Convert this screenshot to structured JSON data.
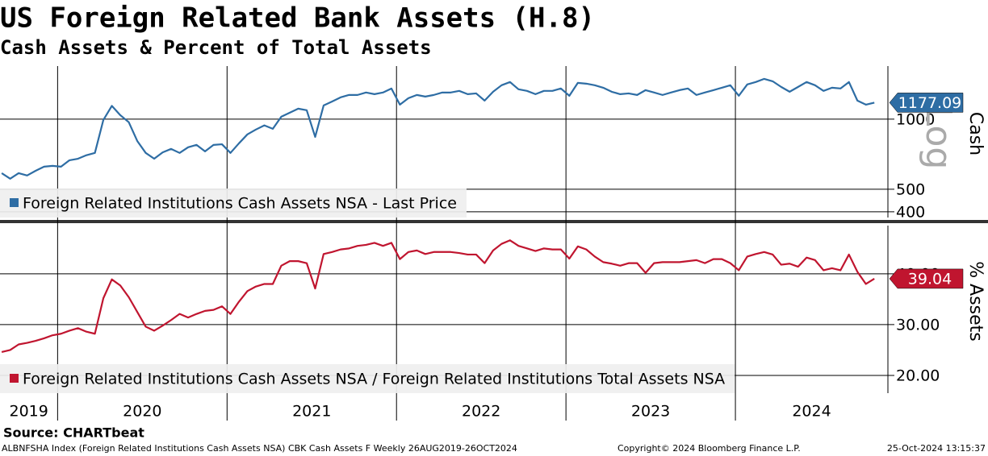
{
  "source": "Source: CHARTbeat",
  "footer": {
    "description": "ALBNFSHA Index (Foreign Related Institutions Cash Assets NSA) CBK Cash Assets F  Weekly 26AUG2019-26OCT2024",
    "copyright": "Copyright© 2024 Bloomberg Finance L.P.",
    "timestamp": "25-Oct-2024 13:15:37"
  },
  "chart_data": [
    {
      "type": "line",
      "title": "US Foreign Related Bank Assets (H.8)",
      "subtitle": "Cash Assets & Percent of Total Assets",
      "log_scale": true,
      "log_label": "Log",
      "y_label": "Cash",
      "grid": true,
      "legend": "lower left",
      "xlim": [
        2019.66,
        2024.9
      ],
      "xticks": [
        2020,
        2021,
        2022,
        2023,
        2024
      ],
      "x": [
        2019.67,
        2019.72,
        2019.77,
        2019.82,
        2019.87,
        2019.92,
        2019.97,
        2020.02,
        2020.07,
        2020.12,
        2020.17,
        2020.22,
        2020.27,
        2020.32,
        2020.37,
        2020.42,
        2020.47,
        2020.52,
        2020.57,
        2020.62,
        2020.67,
        2020.72,
        2020.77,
        2020.82,
        2020.87,
        2020.92,
        2020.97,
        2021.02,
        2021.07,
        2021.12,
        2021.17,
        2021.22,
        2021.27,
        2021.32,
        2021.37,
        2021.42,
        2021.47,
        2021.52,
        2021.57,
        2021.62,
        2021.67,
        2021.72,
        2021.77,
        2021.82,
        2021.87,
        2021.92,
        2021.97,
        2022.02,
        2022.07,
        2022.12,
        2022.17,
        2022.22,
        2022.27,
        2022.32,
        2022.37,
        2022.42,
        2022.47,
        2022.52,
        2022.57,
        2022.62,
        2022.67,
        2022.72,
        2022.77,
        2022.82,
        2022.87,
        2022.92,
        2022.97,
        2023.02,
        2023.07,
        2023.12,
        2023.17,
        2023.22,
        2023.27,
        2023.32,
        2023.37,
        2023.42,
        2023.47,
        2023.52,
        2023.57,
        2023.62,
        2023.67,
        2023.72,
        2023.77,
        2023.82,
        2023.87,
        2023.92,
        2023.97,
        2024.02,
        2024.07,
        2024.12,
        2024.17,
        2024.22,
        2024.27,
        2024.32,
        2024.37,
        2024.42,
        2024.47,
        2024.52,
        2024.57,
        2024.62,
        2024.67,
        2024.72,
        2024.77,
        2024.82
      ],
      "ylim": [
        378,
        1690
      ],
      "yticks": [
        400,
        500,
        1000
      ],
      "series": [
        {
          "name": "Foreign Related Institutions Cash Assets NSA - Last Price",
          "color": "#2e6da4",
          "values": [
            586,
            555,
            586,
            573,
            600,
            625,
            630,
            625,
            666,
            676,
            700,
            716,
            992,
            1140,
            1040,
            970,
            806,
            716,
            676,
            720,
            745,
            716,
            757,
            775,
            727,
            775,
            780,
            716,
            787,
            860,
            902,
            940,
            909,
            1024,
            1066,
            1109,
            1092,
            839,
            1145,
            1190,
            1240,
            1270,
            1270,
            1301,
            1280,
            1301,
            1354,
            1154,
            1230,
            1270,
            1250,
            1270,
            1301,
            1301,
            1322,
            1280,
            1290,
            1201,
            1311,
            1398,
            1443,
            1343,
            1322,
            1280,
            1322,
            1322,
            1354,
            1260,
            1431,
            1420,
            1398,
            1364,
            1311,
            1280,
            1290,
            1270,
            1332,
            1301,
            1270,
            1301,
            1332,
            1354,
            1270,
            1301,
            1332,
            1364,
            1398,
            1260,
            1409,
            1443,
            1489,
            1454,
            1375,
            1311,
            1375,
            1443,
            1398,
            1322,
            1364,
            1354,
            1443,
            1201,
            1154,
            1177.09
          ]
        }
      ]
    },
    {
      "type": "line",
      "y_label": "% Assets",
      "grid": true,
      "legend": "lower left",
      "x_period_labels": [
        "2019",
        "2020",
        "2021",
        "2022",
        "2023",
        "2024"
      ],
      "ylim": [
        16.5,
        49.5
      ],
      "yticks": [
        {
          "value": 20,
          "label": "20.00"
        },
        {
          "value": 30,
          "label": "30.00"
        },
        {
          "value": 40,
          "label": "40.00"
        }
      ],
      "series": [
        {
          "name": "Foreign Related Institutions Cash Assets NSA / Foreign Related Institutions Total Assets NSA",
          "color": "#c0152f",
          "values": [
            24.6,
            25,
            26.1,
            26.4,
            26.8,
            27.3,
            27.9,
            28.2,
            28.8,
            29.3,
            28.6,
            28.2,
            35.2,
            38.9,
            37.7,
            35.4,
            32.5,
            29.6,
            28.8,
            29.8,
            30.9,
            32.1,
            31.4,
            32.1,
            32.7,
            32.9,
            33.6,
            32.1,
            34.5,
            36.6,
            37.5,
            38,
            38,
            41.6,
            42.5,
            42.5,
            42.1,
            37.1,
            43.9,
            44.3,
            44.8,
            45,
            45.5,
            45.7,
            46.1,
            45.5,
            46.1,
            42.9,
            44.3,
            44.6,
            43.9,
            44.3,
            44.3,
            44.3,
            44.1,
            43.8,
            43.8,
            42.1,
            44.6,
            45.9,
            46.6,
            45.5,
            45,
            44.5,
            45,
            44.8,
            44.8,
            43,
            45.4,
            44.8,
            43.4,
            42.3,
            42,
            41.6,
            42.1,
            42.1,
            40.2,
            42.1,
            42.3,
            42.3,
            42.3,
            42.5,
            42.7,
            42.1,
            42.9,
            42.9,
            42.1,
            40.7,
            43.4,
            43.9,
            44.3,
            43.8,
            41.8,
            42,
            41.4,
            43.2,
            42.7,
            40.7,
            41.1,
            40.7,
            43.8,
            40.4,
            38,
            39.04
          ]
        }
      ]
    }
  ]
}
